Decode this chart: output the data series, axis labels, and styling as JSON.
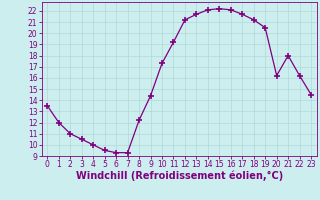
{
  "x": [
    0,
    1,
    2,
    3,
    4,
    5,
    6,
    7,
    8,
    9,
    10,
    11,
    12,
    13,
    14,
    15,
    16,
    17,
    18,
    19,
    20,
    21,
    22,
    23
  ],
  "y": [
    13.5,
    12.0,
    11.0,
    10.5,
    10.0,
    9.5,
    9.3,
    9.3,
    12.2,
    14.4,
    17.3,
    19.2,
    21.2,
    21.7,
    22.1,
    22.2,
    22.1,
    21.7,
    21.2,
    20.5,
    16.2,
    18.0,
    16.2,
    14.5
  ],
  "line_color": "#800080",
  "marker": "+",
  "marker_size": 4,
  "marker_lw": 1.2,
  "bg_color": "#cceeee",
  "grid_color": "#b0d8d8",
  "xlabel": "Windchill (Refroidissement éolien,°C)",
  "xlim": [
    -0.5,
    23.5
  ],
  "ylim": [
    9,
    22.8
  ],
  "yticks": [
    9,
    10,
    11,
    12,
    13,
    14,
    15,
    16,
    17,
    18,
    19,
    20,
    21,
    22
  ],
  "xticks": [
    0,
    1,
    2,
    3,
    4,
    5,
    6,
    7,
    8,
    9,
    10,
    11,
    12,
    13,
    14,
    15,
    16,
    17,
    18,
    19,
    20,
    21,
    22,
    23
  ],
  "tick_label_fontsize": 5.5,
  "xlabel_fontsize": 7.0,
  "xlabel_color": "#800080",
  "tick_color": "#800080",
  "spine_color": "#800080",
  "line_width": 0.9
}
